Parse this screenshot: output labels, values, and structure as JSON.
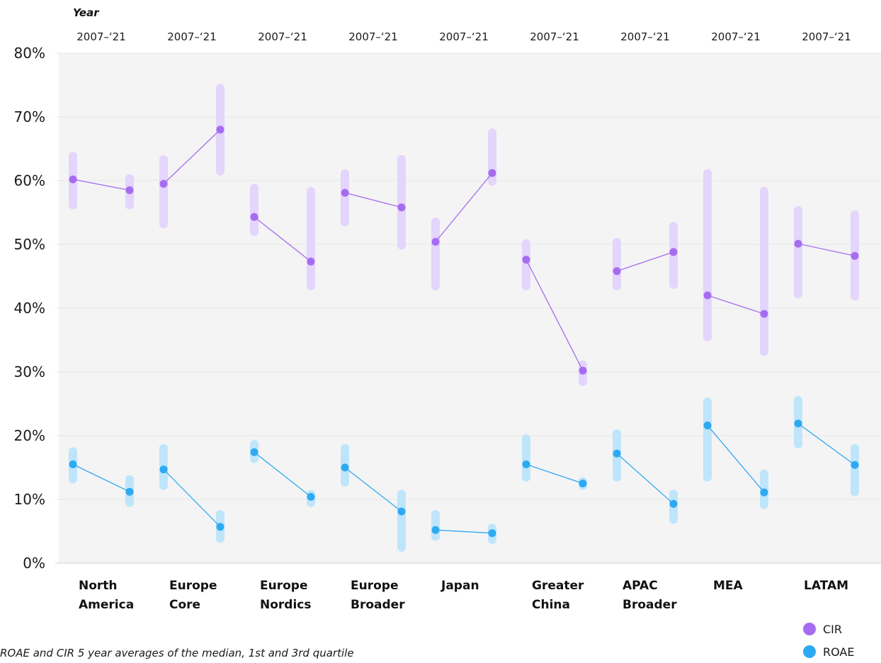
{
  "chart_data": {
    "type": "range-dot",
    "title": "",
    "x_header": "Year",
    "period_label": "2007–‘21",
    "yticks": [
      "0%",
      "10%",
      "20%",
      "30%",
      "40%",
      "50%",
      "60%",
      "70%",
      "80%"
    ],
    "ylim": [
      0,
      80
    ],
    "grid": true,
    "legend_position": "bottom-right",
    "colors": {
      "CIR": "#a66cf0",
      "CIR_range": "#e3d5fb",
      "ROAE": "#2eaaf2",
      "ROAE_range": "#bfe5fb",
      "band": "#f4f4f4"
    },
    "categories": [
      {
        "line1": "North",
        "line2": "America",
        "CIR": {
          "start": [
            60.2,
            55.5,
            64.5
          ],
          "end": [
            58.5,
            55.5,
            61.0
          ]
        },
        "ROAE": {
          "start": [
            15.5,
            12.5,
            18.2
          ],
          "end": [
            11.2,
            8.8,
            13.8
          ]
        }
      },
      {
        "line1": "Europe",
        "line2": "Core",
        "CIR": {
          "start": [
            59.5,
            52.5,
            64.0
          ],
          "end": [
            68.0,
            60.8,
            75.2
          ]
        },
        "ROAE": {
          "start": [
            14.7,
            11.5,
            18.7
          ],
          "end": [
            5.7,
            3.2,
            8.3
          ]
        }
      },
      {
        "line1": "Europe",
        "line2": "Nordics",
        "CIR": {
          "start": [
            54.3,
            51.3,
            59.5
          ],
          "end": [
            47.3,
            42.8,
            59.0
          ]
        },
        "ROAE": {
          "start": [
            17.4,
            15.7,
            19.3
          ],
          "end": [
            10.4,
            8.8,
            11.5
          ]
        }
      },
      {
        "line1": "Europe",
        "line2": "Broader",
        "CIR": {
          "start": [
            58.1,
            52.8,
            61.8
          ],
          "end": [
            55.8,
            49.2,
            64.0
          ]
        },
        "ROAE": {
          "start": [
            15.0,
            12.0,
            18.7
          ],
          "end": [
            8.1,
            1.8,
            11.5
          ]
        }
      },
      {
        "line1": "Japan",
        "line2": "",
        "CIR": {
          "start": [
            50.4,
            42.8,
            54.2
          ],
          "end": [
            61.2,
            59.2,
            68.2
          ]
        },
        "ROAE": {
          "start": [
            5.2,
            3.5,
            8.3
          ],
          "end": [
            4.7,
            3.0,
            6.2
          ]
        }
      },
      {
        "line1": "Greater",
        "line2": "China",
        "CIR": {
          "start": [
            47.6,
            42.8,
            50.8
          ],
          "end": [
            30.2,
            27.8,
            31.8
          ]
        },
        "ROAE": {
          "start": [
            15.5,
            12.8,
            20.2
          ],
          "end": [
            12.5,
            11.5,
            13.5
          ]
        }
      },
      {
        "line1": "APAC",
        "line2": "Broader",
        "CIR": {
          "start": [
            45.8,
            42.8,
            51.0
          ],
          "end": [
            48.8,
            43.0,
            53.5
          ]
        },
        "ROAE": {
          "start": [
            17.2,
            12.8,
            21.0
          ],
          "end": [
            9.3,
            6.2,
            11.5
          ]
        }
      },
      {
        "line1": "MEA",
        "line2": "",
        "CIR": {
          "start": [
            42.0,
            34.8,
            61.8
          ],
          "end": [
            39.1,
            32.5,
            59.0
          ]
        },
        "ROAE": {
          "start": [
            21.6,
            12.8,
            26.0
          ],
          "end": [
            11.1,
            8.5,
            14.7
          ]
        }
      },
      {
        "line1": "LATAM",
        "line2": "",
        "CIR": {
          "start": [
            50.1,
            41.5,
            56.0
          ],
          "end": [
            48.2,
            41.2,
            55.3
          ]
        },
        "ROAE": {
          "start": [
            21.9,
            18.0,
            26.2
          ],
          "end": [
            15.4,
            10.5,
            18.7
          ]
        }
      }
    ],
    "series": [
      {
        "name": "CIR"
      },
      {
        "name": "ROAE"
      }
    ]
  },
  "footnote": "ROAE and CIR 5 year averages of the median, 1st and 3rd quartile"
}
